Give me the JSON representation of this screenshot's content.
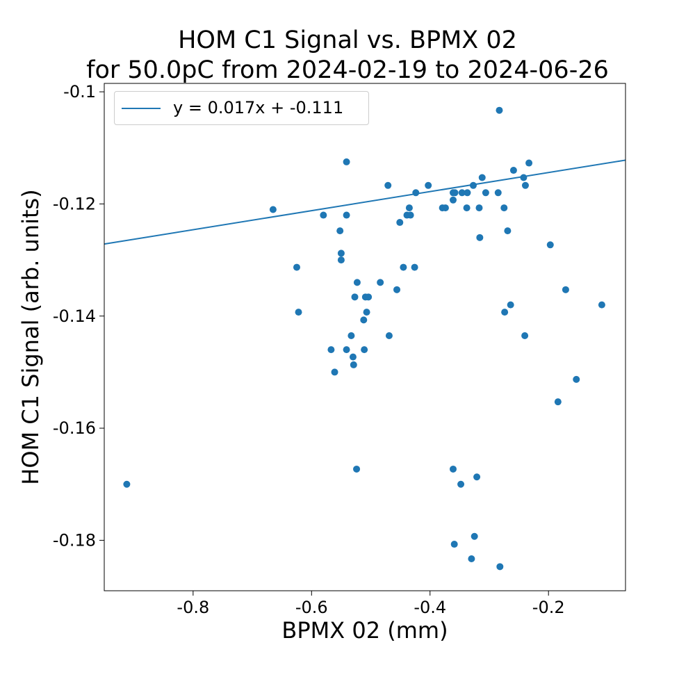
{
  "chart_data": {
    "type": "scatter",
    "title": "HOM C1 Signal vs. BPMX 02",
    "subtitle": "for 50.0pC from 2024-02-19 to 2024-06-26",
    "xlabel": "BPMX 02 (mm)",
    "ylabel": "HOM C1 Signal (arb. units)",
    "xlim": [
      -0.95,
      -0.07
    ],
    "ylim": [
      -0.189,
      -0.0985
    ],
    "xticks": [
      -0.8,
      -0.6,
      -0.4,
      -0.2
    ],
    "xtick_labels": [
      "-0.8",
      "-0.6",
      "-0.4",
      "-0.2"
    ],
    "yticks": [
      -0.18,
      -0.16,
      -0.14,
      -0.12,
      -0.1
    ],
    "ytick_labels": [
      "-0.18",
      "-0.16",
      "-0.14",
      "-0.12",
      "-0.1"
    ],
    "grid": false,
    "legend_position": "top-left",
    "colors": {
      "series": "#1f77b4"
    },
    "series": [
      {
        "kind": "points",
        "points": [
          [
            -0.912,
            -0.17
          ],
          [
            -0.665,
            -0.121
          ],
          [
            -0.625,
            -0.1313
          ],
          [
            -0.622,
            -0.1393
          ],
          [
            -0.58,
            -0.122
          ],
          [
            -0.567,
            -0.146
          ],
          [
            -0.561,
            -0.15
          ],
          [
            -0.552,
            -0.1248
          ],
          [
            -0.55,
            -0.1288
          ],
          [
            -0.55,
            -0.13
          ],
          [
            -0.541,
            -0.1125
          ],
          [
            -0.541,
            -0.122
          ],
          [
            -0.541,
            -0.146
          ],
          [
            -0.533,
            -0.1435
          ],
          [
            -0.53,
            -0.1473
          ],
          [
            -0.529,
            -0.1487
          ],
          [
            -0.527,
            -0.1366
          ],
          [
            -0.524,
            -0.1673
          ],
          [
            -0.523,
            -0.134
          ],
          [
            -0.512,
            -0.1407
          ],
          [
            -0.511,
            -0.146
          ],
          [
            -0.509,
            -0.1366
          ],
          [
            -0.507,
            -0.1393
          ],
          [
            -0.504,
            -0.1366
          ],
          [
            -0.484,
            -0.134
          ],
          [
            -0.471,
            -0.1167
          ],
          [
            -0.469,
            -0.1435
          ],
          [
            -0.456,
            -0.1353
          ],
          [
            -0.451,
            -0.1233
          ],
          [
            -0.445,
            -0.1313
          ],
          [
            -0.439,
            -0.122
          ],
          [
            -0.435,
            -0.1207
          ],
          [
            -0.433,
            -0.122
          ],
          [
            -0.426,
            -0.1313
          ],
          [
            -0.424,
            -0.118
          ],
          [
            -0.403,
            -0.1167
          ],
          [
            -0.379,
            -0.1207
          ],
          [
            -0.374,
            -0.1207
          ],
          [
            -0.361,
            -0.118
          ],
          [
            -0.361,
            -0.1193
          ],
          [
            -0.361,
            -0.1673
          ],
          [
            -0.359,
            -0.1807
          ],
          [
            -0.358,
            -0.118
          ],
          [
            -0.348,
            -0.17
          ],
          [
            -0.346,
            -0.118
          ],
          [
            -0.338,
            -0.1207
          ],
          [
            -0.337,
            -0.118
          ],
          [
            -0.33,
            -0.1833
          ],
          [
            -0.327,
            -0.1167
          ],
          [
            -0.325,
            -0.1793
          ],
          [
            -0.321,
            -0.1687
          ],
          [
            -0.317,
            -0.1207
          ],
          [
            -0.316,
            -0.126
          ],
          [
            -0.312,
            -0.1153
          ],
          [
            -0.306,
            -0.118
          ],
          [
            -0.285,
            -0.118
          ],
          [
            -0.283,
            -0.1033
          ],
          [
            -0.282,
            -0.1847
          ],
          [
            -0.275,
            -0.1207
          ],
          [
            -0.274,
            -0.1393
          ],
          [
            -0.269,
            -0.1248
          ],
          [
            -0.264,
            -0.138
          ],
          [
            -0.259,
            -0.114
          ],
          [
            -0.242,
            -0.1153
          ],
          [
            -0.24,
            -0.1435
          ],
          [
            -0.239,
            -0.1167
          ],
          [
            -0.233,
            -0.1127
          ],
          [
            -0.197,
            -0.1273
          ],
          [
            -0.184,
            -0.1553
          ],
          [
            -0.171,
            -0.1353
          ],
          [
            -0.153,
            -0.1513
          ],
          [
            -0.11,
            -0.138
          ]
        ]
      },
      {
        "kind": "fit",
        "name": "y = 0.017x + -0.111",
        "slope": 0.017,
        "intercept": -0.111
      }
    ]
  }
}
